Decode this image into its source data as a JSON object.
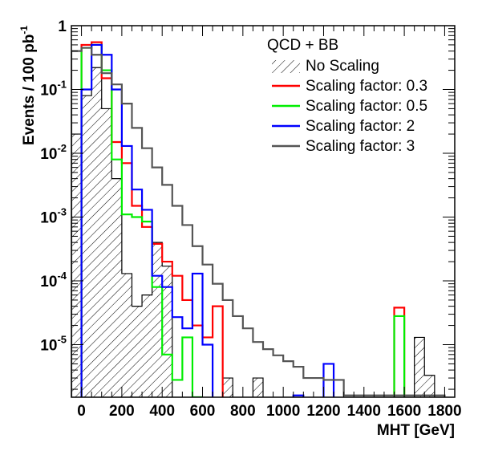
{
  "chart_data": {
    "type": "histogram",
    "xlabel": "MHT [GeV]",
    "ylabel": "Events / 100 pb",
    "ylabel_sup": "-1",
    "xlim": [
      -50,
      1850
    ],
    "ylim": [
      1.5e-06,
      1.0
    ],
    "yscale": "log",
    "bin_width": 50,
    "x_ticks": [
      0,
      200,
      400,
      600,
      800,
      1000,
      1200,
      1400,
      1600,
      1800
    ],
    "y_ticks": [
      {
        "value": 1,
        "base": "1",
        "exp": ""
      },
      {
        "value": 0.1,
        "base": "10",
        "exp": "-1"
      },
      {
        "value": 0.01,
        "base": "10",
        "exp": "-2"
      },
      {
        "value": 0.001,
        "base": "10",
        "exp": "-3"
      },
      {
        "value": 0.0001,
        "base": "10",
        "exp": "-4"
      },
      {
        "value": 1e-05,
        "base": "10",
        "exp": "-5"
      }
    ],
    "legend_title": "QCD + BB",
    "legend_position": "top-right",
    "series": [
      {
        "name": "No Scaling",
        "style": "hatched",
        "color": "#000000",
        "bins": [
          {
            "x": -50,
            "y": 0.02
          },
          {
            "x": 0,
            "y": 0.08
          },
          {
            "x": 50,
            "y": 0.22
          },
          {
            "x": 100,
            "y": 0.05
          },
          {
            "x": 150,
            "y": 0.004
          },
          {
            "x": 200,
            "y": 0.00013
          },
          {
            "x": 250,
            "y": 4e-05
          },
          {
            "x": 300,
            "y": 6e-05
          },
          {
            "x": 350,
            "y": 0.0004
          },
          {
            "x": 400,
            "y": 0.00017
          },
          {
            "x": 700,
            "y": 3e-06
          },
          {
            "x": 850,
            "y": 3e-06
          },
          {
            "x": 1650,
            "y": 1.3e-05
          },
          {
            "x": 1700,
            "y": 3.3e-06
          }
        ]
      },
      {
        "name": "Scaling factor: 0.3",
        "style": "line",
        "color": "#ff0000",
        "bins": [
          {
            "x": 0,
            "y": 0.5
          },
          {
            "x": 50,
            "y": 0.55
          },
          {
            "x": 100,
            "y": 0.15
          },
          {
            "x": 150,
            "y": 0.015
          },
          {
            "x": 200,
            "y": 0.007
          },
          {
            "x": 250,
            "y": 0.0015
          },
          {
            "x": 300,
            "y": 0.0007
          },
          {
            "x": 350,
            "y": 0.00038
          },
          {
            "x": 400,
            "y": 0.0002
          },
          {
            "x": 450,
            "y": 0.00012
          },
          {
            "x": 500,
            "y": 5e-05
          },
          {
            "x": 550,
            "y": 2e-05
          },
          {
            "x": 600,
            "y": 1.3e-05
          },
          {
            "x": 650,
            "y": 4e-05
          },
          {
            "x": 1550,
            "y": 3.8e-05
          }
        ]
      },
      {
        "name": "Scaling factor: 0.5",
        "style": "line",
        "color": "#00ee00",
        "bins": [
          {
            "x": 0,
            "y": 0.45
          },
          {
            "x": 50,
            "y": 0.5
          },
          {
            "x": 100,
            "y": 0.2
          },
          {
            "x": 150,
            "y": 0.008
          },
          {
            "x": 200,
            "y": 0.0011
          },
          {
            "x": 250,
            "y": 0.001
          },
          {
            "x": 300,
            "y": 0.00085
          },
          {
            "x": 350,
            "y": 8e-05
          },
          {
            "x": 400,
            "y": 7e-06
          },
          {
            "x": 450,
            "y": 2.8e-06
          },
          {
            "x": 500,
            "y": 1.3e-05
          },
          {
            "x": 550,
            "y": 1.4e-06
          },
          {
            "x": 1550,
            "y": 2.8e-05
          }
        ]
      },
      {
        "name": "Scaling factor: 2",
        "style": "line",
        "color": "#0000ff",
        "bins": [
          {
            "x": 0,
            "y": 0.1
          },
          {
            "x": 50,
            "y": 0.5
          },
          {
            "x": 100,
            "y": 0.35
          },
          {
            "x": 150,
            "y": 0.1
          },
          {
            "x": 200,
            "y": 0.013
          },
          {
            "x": 250,
            "y": 0.0027
          },
          {
            "x": 300,
            "y": 0.0013
          },
          {
            "x": 350,
            "y": 0.00012
          },
          {
            "x": 400,
            "y": 8e-05
          },
          {
            "x": 450,
            "y": 2.7e-05
          },
          {
            "x": 500,
            "y": 1.8e-05
          },
          {
            "x": 550,
            "y": 0.00013
          },
          {
            "x": 600,
            "y": 1e-05
          },
          {
            "x": 1050,
            "y": 1.6e-06
          },
          {
            "x": 1200,
            "y": 5e-06
          }
        ]
      },
      {
        "name": "Scaling factor: 3",
        "style": "line",
        "color": "#555555",
        "bins": [
          {
            "x": -50,
            "y": 0.4
          },
          {
            "x": 0,
            "y": 0.45
          },
          {
            "x": 50,
            "y": 0.35
          },
          {
            "x": 100,
            "y": 0.18
          },
          {
            "x": 150,
            "y": 0.12
          },
          {
            "x": 200,
            "y": 0.06
          },
          {
            "x": 250,
            "y": 0.025
          },
          {
            "x": 300,
            "y": 0.012
          },
          {
            "x": 350,
            "y": 0.006
          },
          {
            "x": 400,
            "y": 0.0032
          },
          {
            "x": 450,
            "y": 0.0015
          },
          {
            "x": 500,
            "y": 0.00075
          },
          {
            "x": 550,
            "y": 0.00035
          },
          {
            "x": 600,
            "y": 0.00018
          },
          {
            "x": 650,
            "y": 9e-05
          },
          {
            "x": 700,
            "y": 5e-05
          },
          {
            "x": 750,
            "y": 2.8e-05
          },
          {
            "x": 800,
            "y": 1.8e-05
          },
          {
            "x": 850,
            "y": 1.1e-05
          },
          {
            "x": 900,
            "y": 8.5e-06
          },
          {
            "x": 950,
            "y": 6.8e-06
          },
          {
            "x": 1000,
            "y": 5.5e-06
          },
          {
            "x": 1050,
            "y": 4.5e-06
          },
          {
            "x": 1100,
            "y": 3e-06
          },
          {
            "x": 1150,
            "y": 3e-06
          },
          {
            "x": 1200,
            "y": 2.8e-06
          },
          {
            "x": 1250,
            "y": 2.8e-06
          },
          {
            "x": 1300,
            "y": 1.6e-06
          },
          {
            "x": 1350,
            "y": 1.6e-06
          },
          {
            "x": 1400,
            "y": 1.6e-06
          },
          {
            "x": 1450,
            "y": 1.6e-06
          },
          {
            "x": 1500,
            "y": 1.6e-06
          },
          {
            "x": 1550,
            "y": 1.6e-06
          },
          {
            "x": 1600,
            "y": 1.6e-06
          },
          {
            "x": 1650,
            "y": 1.6e-06
          },
          {
            "x": 1700,
            "y": 1.6e-06
          },
          {
            "x": 1750,
            "y": 1.6e-06
          }
        ]
      }
    ]
  }
}
